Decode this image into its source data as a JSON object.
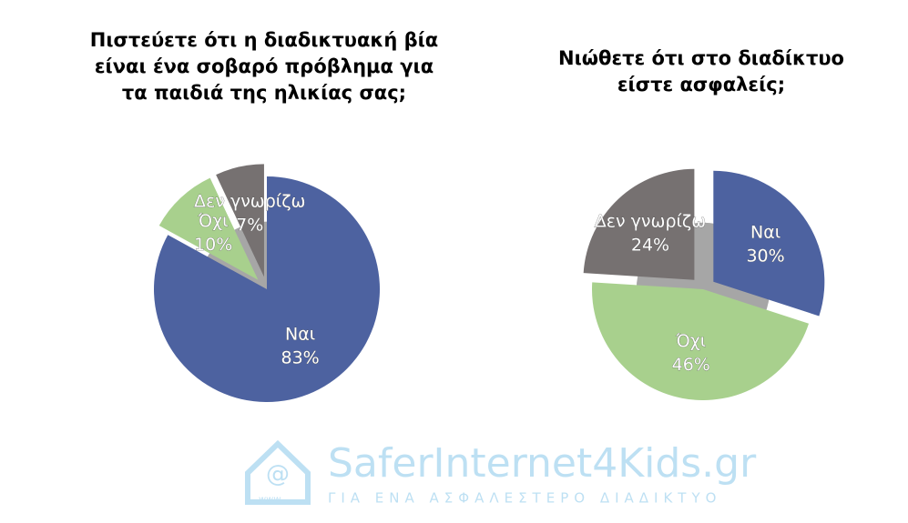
{
  "chart_data": [
    {
      "type": "pie",
      "title": [
        "Πιστεύετε ότι η διαδικτυακή βία",
        "είναι ένα σοβαρό πρόβλημα για",
        "τα παιδιά της ηλικίας σας;"
      ],
      "categories": [
        "Ναι",
        "Όχι",
        "Δεν γνωρίζω"
      ],
      "values": [
        83,
        10,
        7
      ],
      "value_labels": [
        "83%",
        "10%",
        "7%"
      ],
      "colors": [
        "#4d62a0",
        "#a8d08d",
        "#767171"
      ],
      "exploded": [
        false,
        true,
        true
      ]
    },
    {
      "type": "pie",
      "title": [
        "Νιώθετε ότι στο διαδίκτυο",
        "είστε ασφαλείς;"
      ],
      "categories": [
        "Ναι",
        "Όχι",
        "Δεν γνωρίζω"
      ],
      "values": [
        30,
        46,
        24
      ],
      "value_labels": [
        "30%",
        "46%",
        "24%"
      ],
      "colors": [
        "#4d62a0",
        "#a8d08d",
        "#767171"
      ],
      "exploded": [
        true,
        false,
        true
      ]
    }
  ],
  "watermark": {
    "brand": "SaferInternet4Kids.gr",
    "slogan": "ΓΙΑ ΕΝΑ ΑΣΦΑΛΕΣΤΕΡΟ ΔΙΑΔΙΚΤΥΟ",
    "www": "www"
  }
}
